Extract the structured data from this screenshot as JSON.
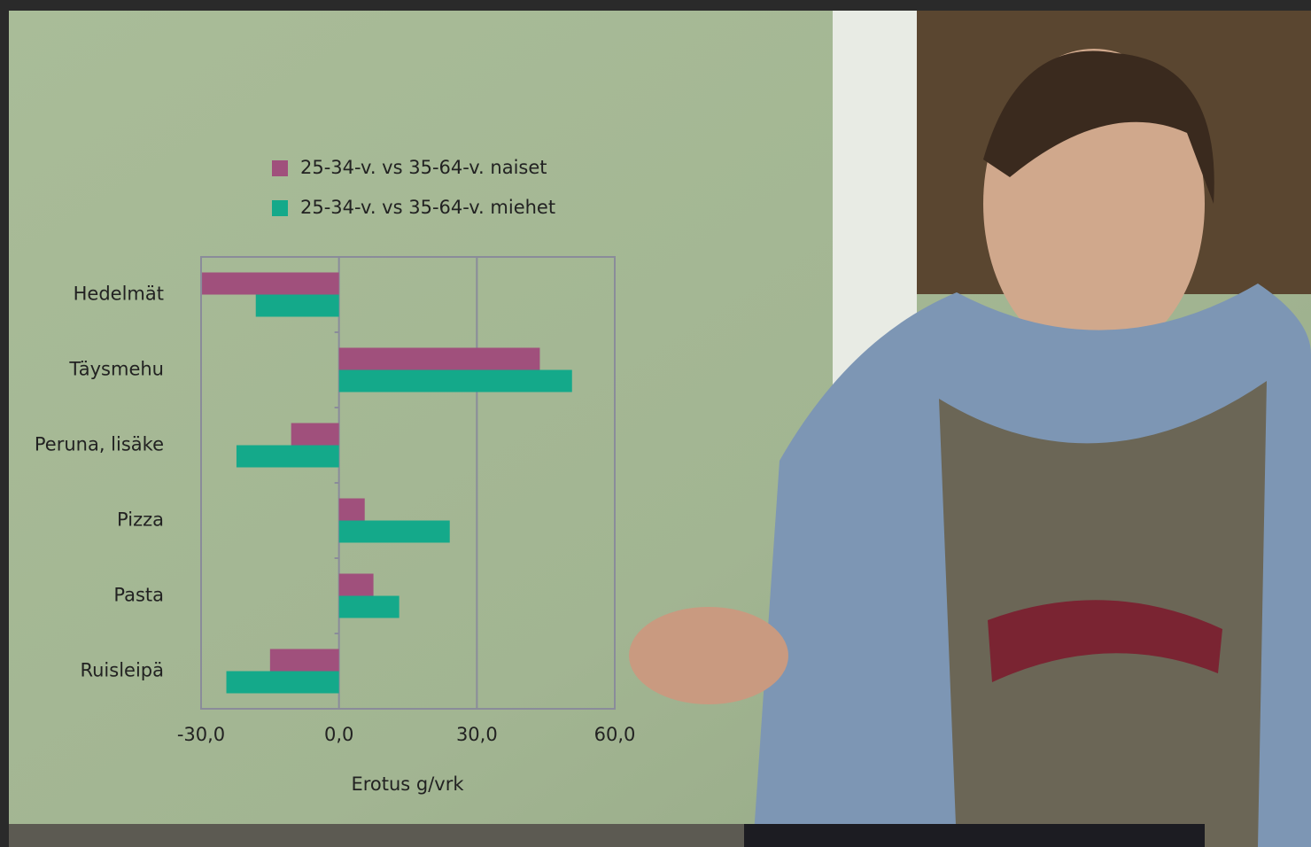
{
  "chart_data": {
    "type": "bar",
    "categories": [
      "Hedelmät",
      "Täysmehu",
      "Peruna, lisäke",
      "Pizza",
      "Pasta",
      "Ruisleipä"
    ],
    "series": [
      {
        "name": "25-34-v.  vs 35-64-v. naiset",
        "color": "#a0507c",
        "values": [
          -29.8,
          43.7,
          -10.4,
          5.6,
          7.5,
          -15.0
        ]
      },
      {
        "name": "25-34-v.  vs 35-64-v. miehet",
        "color": "#14a98a",
        "values": [
          -18.1,
          50.7,
          -22.3,
          24.1,
          13.1,
          -24.5
        ]
      }
    ],
    "xlabel": "Erotus g/vrk",
    "xlim": [
      -30,
      60
    ],
    "xticks": [
      {
        "value": -30,
        "label": "-30,0"
      },
      {
        "value": 0,
        "label": "0,0"
      },
      {
        "value": 30,
        "label": "30,0"
      },
      {
        "value": 60,
        "label": "60,0"
      }
    ],
    "grid": true,
    "legend": "top"
  }
}
